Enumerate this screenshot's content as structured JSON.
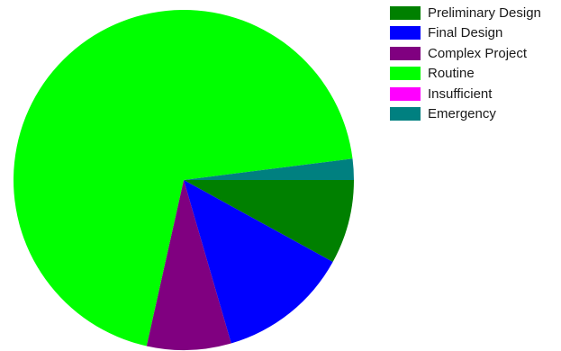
{
  "chart_data": {
    "type": "pie",
    "title": "",
    "legend_position": "top-right",
    "slices": [
      {
        "label": "Preliminary Design",
        "value": 8.0,
        "color": "#008000"
      },
      {
        "label": "Final Design",
        "value": 12.5,
        "color": "#0000FF"
      },
      {
        "label": "Complex Project",
        "value": 8.0,
        "color": "#800080"
      },
      {
        "label": "Routine",
        "value": 69.5,
        "color": "#00FF00"
      },
      {
        "label": "Insufficient",
        "value": 0.0,
        "color": "#FF00FF"
      },
      {
        "label": "Emergency",
        "value": 2.0,
        "color": "#008080"
      }
    ]
  }
}
